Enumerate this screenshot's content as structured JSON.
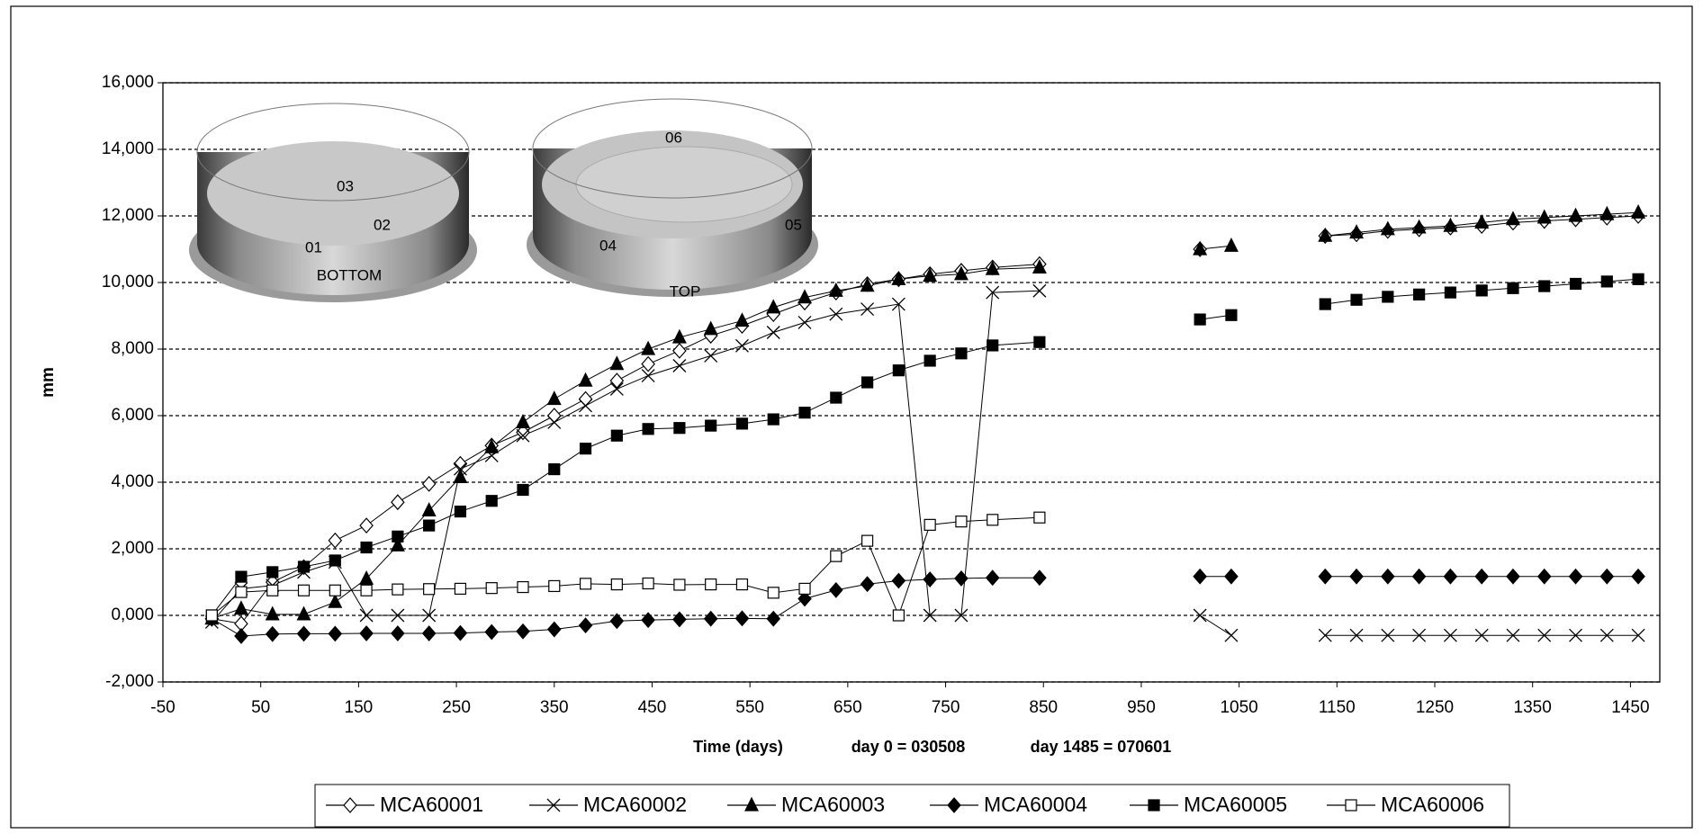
{
  "chart_data": {
    "type": "line",
    "y_title": "mm",
    "x_title": "Time (days)",
    "annotations": [
      "day 0 = 030508",
      "day 1485 = 070601"
    ],
    "inset": {
      "bottom": {
        "title": "BOTTOM",
        "labels": [
          "01",
          "02",
          "03"
        ]
      },
      "top": {
        "title": "TOP",
        "labels": [
          "04",
          "05",
          "06"
        ]
      }
    },
    "xlim": [
      -50,
      1480
    ],
    "xticks": [
      -50,
      50,
      150,
      250,
      350,
      450,
      550,
      650,
      750,
      850,
      950,
      1050,
      1150,
      1250,
      1350,
      1450
    ],
    "ylim": [
      -2000,
      16000
    ],
    "yticks": [
      {
        "value": -2000,
        "label": "-2,000"
      },
      {
        "value": 0,
        "label": "0,000"
      },
      {
        "value": 2000,
        "label": "2,000"
      },
      {
        "value": 4000,
        "label": "4,000"
      },
      {
        "value": 6000,
        "label": "6,000"
      },
      {
        "value": 8000,
        "label": "8,000"
      },
      {
        "value": 10000,
        "label": "10,000"
      },
      {
        "value": 12000,
        "label": "12,000"
      },
      {
        "value": 14000,
        "label": "14,000"
      },
      {
        "value": 16000,
        "label": "16,000"
      }
    ],
    "grid": true,
    "legend": "bottom",
    "x": [
      0,
      30,
      62,
      94,
      126,
      158,
      190,
      222,
      254,
      286,
      318,
      350,
      382,
      414,
      446,
      478,
      510,
      542,
      574,
      606,
      638,
      670,
      702,
      734,
      766,
      798,
      846,
      null,
      1010,
      1042,
      null,
      1138,
      1170,
      1202,
      1234,
      1266,
      1298,
      1330,
      1362,
      1394,
      1426,
      1458
    ],
    "series": [
      {
        "name": "MCA60001",
        "color": "#000000",
        "marker": "diamond-open",
        "values": [
          -100,
          -250,
          1000,
          1450,
          2250,
          2700,
          3400,
          3950,
          4550,
          5100,
          5500,
          6000,
          6500,
          7050,
          7550,
          7950,
          8400,
          8700,
          9050,
          9400,
          9700,
          9950,
          10100,
          10250,
          10350,
          10450,
          10550,
          null,
          11000,
          null,
          null,
          11400,
          11450,
          11550,
          11600,
          11650,
          11700,
          11800,
          11850,
          11900,
          11950,
          12000
        ]
      },
      {
        "name": "MCA60002",
        "color": "#000000",
        "marker": "cross",
        "values": [
          -200,
          800,
          900,
          1300,
          1600,
          0,
          0,
          0,
          4400,
          4800,
          5400,
          5800,
          6300,
          6800,
          7200,
          7500,
          7800,
          8100,
          8500,
          8800,
          9050,
          9200,
          9350,
          0,
          0,
          9700,
          9750,
          null,
          0,
          -600,
          null,
          -600,
          -600,
          -600,
          -600,
          -600,
          -600,
          -600,
          -600,
          -600,
          -600,
          -600
        ]
      },
      {
        "name": "MCA60003",
        "color": "#000000",
        "marker": "triangle",
        "values": [
          -100,
          200,
          30,
          30,
          400,
          1100,
          2100,
          3150,
          4150,
          5050,
          5800,
          6500,
          7050,
          7550,
          8000,
          8350,
          8600,
          8850,
          9250,
          9550,
          9750,
          9900,
          10100,
          10200,
          10250,
          10400,
          10450,
          null,
          11000,
          11100,
          null,
          11400,
          11500,
          11600,
          11650,
          11700,
          11800,
          11900,
          11950,
          12000,
          12050,
          12100
        ]
      },
      {
        "name": "MCA60004",
        "color": "#000000",
        "marker": "diamond",
        "values": [
          -100,
          -620,
          -560,
          -550,
          -550,
          -540,
          -540,
          -540,
          -530,
          -500,
          -480,
          -420,
          -300,
          -170,
          -140,
          -120,
          -100,
          -90,
          -100,
          500,
          760,
          940,
          1040,
          1080,
          1110,
          1130,
          1130,
          null,
          1170,
          1170,
          null,
          1170,
          1170,
          1170,
          1170,
          1170,
          1170,
          1170,
          1170,
          1170,
          1170,
          1170
        ]
      },
      {
        "name": "MCA60005",
        "color": "#000000",
        "marker": "square",
        "values": [
          0,
          1160,
          1300,
          1460,
          1650,
          2040,
          2370,
          2700,
          3120,
          3440,
          3770,
          4390,
          5010,
          5400,
          5600,
          5630,
          5700,
          5760,
          5890,
          6090,
          6540,
          7000,
          7360,
          7650,
          7870,
          8110,
          8210,
          null,
          8890,
          9020,
          null,
          9350,
          9480,
          9570,
          9640,
          9700,
          9760,
          9830,
          9890,
          9960,
          10030,
          10100
        ]
      },
      {
        "name": "MCA60006",
        "color": "#000000",
        "marker": "square-open",
        "values": [
          0,
          700,
          750,
          750,
          750,
          750,
          780,
          790,
          800,
          820,
          850,
          880,
          950,
          930,
          960,
          920,
          930,
          930,
          680,
          800,
          1780,
          2240,
          0,
          2720,
          2820,
          2870,
          2940,
          null,
          null,
          null,
          null,
          null,
          null,
          null,
          null,
          null,
          null,
          null,
          null,
          null,
          null,
          null
        ]
      }
    ]
  }
}
